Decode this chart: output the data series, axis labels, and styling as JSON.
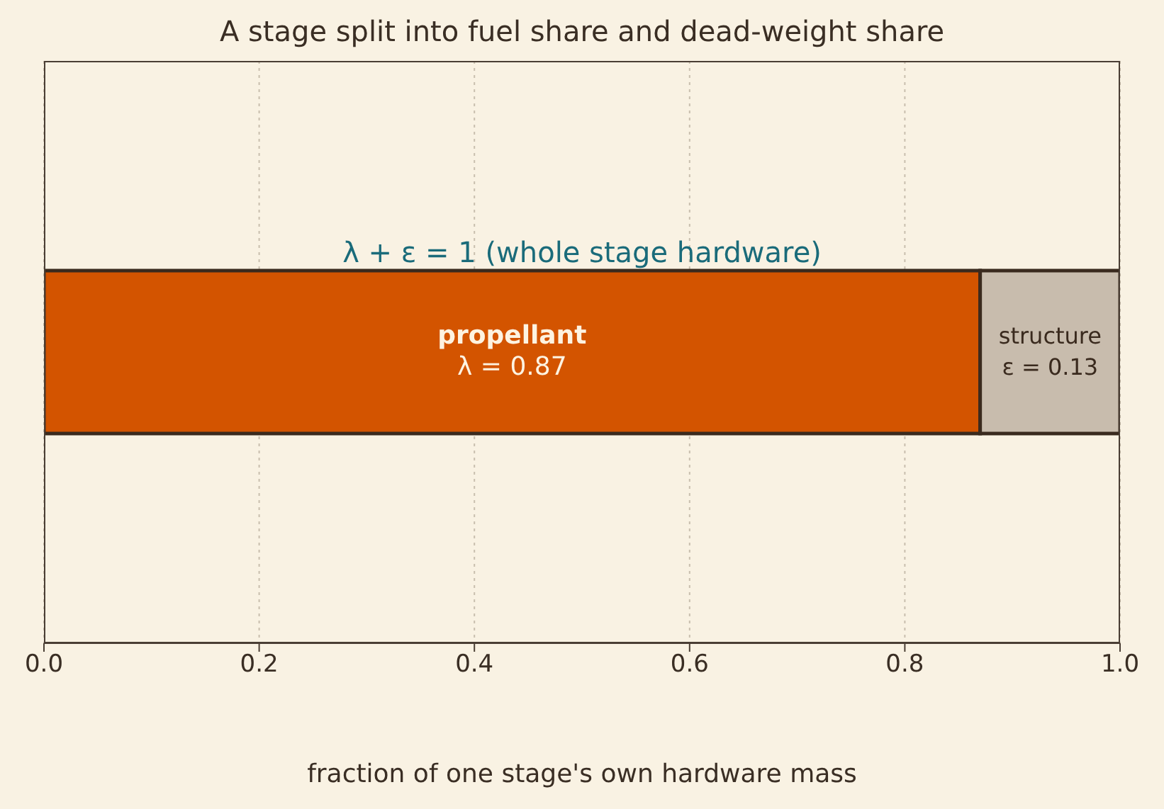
{
  "chart_data": {
    "type": "bar",
    "orientation": "horizontal",
    "stacked": true,
    "title": "A stage split into fuel share and dead-weight share",
    "xlabel": "fraction of one stage's own hardware mass",
    "categories": [
      null
    ],
    "series": [
      {
        "name": "propellant",
        "color": "#d35400",
        "values": [
          0.87
        ],
        "value_labels": [
          "λ = 0.87"
        ]
      },
      {
        "name": "structure",
        "color": "#c8bcad",
        "values": [
          0.13
        ],
        "value_labels": [
          "ε = 0.13"
        ]
      }
    ],
    "annotations": [
      "λ + ε = 1  (whole stage hardware)"
    ],
    "xlim": [
      0,
      1
    ],
    "xticks": [
      {
        "value": 0,
        "label": "0.0"
      },
      {
        "value": 0.2,
        "label": "0.2"
      },
      {
        "value": 0.4,
        "label": "0.4"
      },
      {
        "value": 0.6,
        "label": "0.6"
      },
      {
        "value": 0.8,
        "label": "0.8"
      },
      {
        "value": 1,
        "label": "1.0"
      }
    ],
    "grid": "x",
    "tick_labels": "x",
    "legend": false
  }
}
